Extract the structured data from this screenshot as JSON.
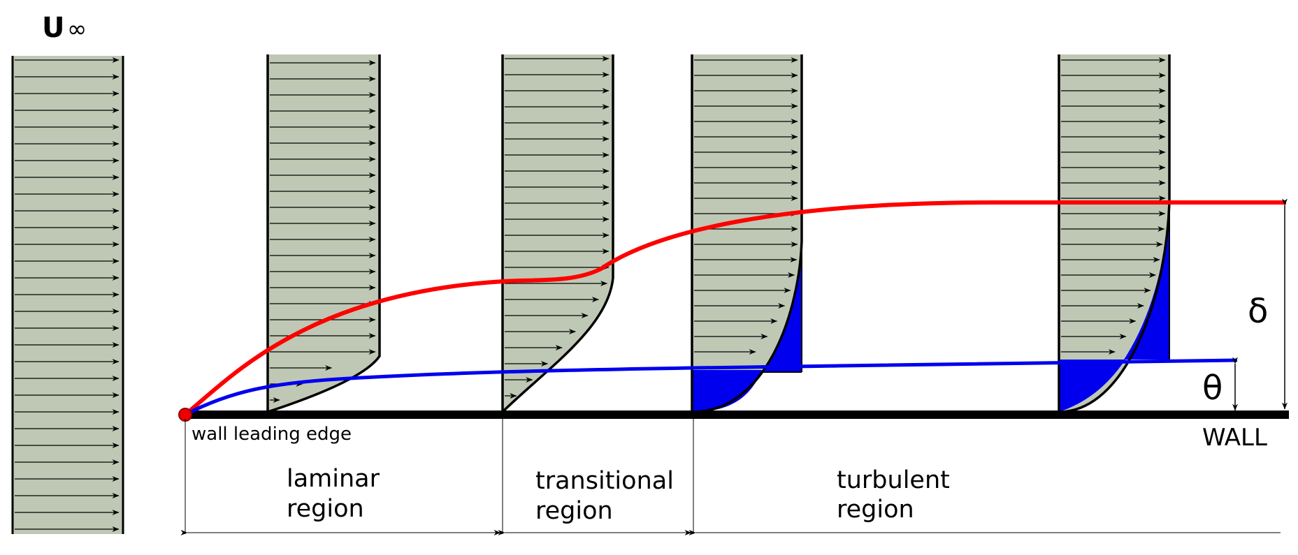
{
  "labels": {
    "freestream_u": "U",
    "freestream_inf": "∞",
    "delta": "δ",
    "theta": "θ",
    "wall": "WALL",
    "leading_edge": "wall leading edge"
  },
  "regions": [
    {
      "line1": "laminar",
      "line2": "region"
    },
    {
      "line1": "transitional",
      "line2": "region"
    },
    {
      "line1": "turbulent",
      "line2": "region"
    }
  ],
  "colors": {
    "profile_fill": "#bfc8b4",
    "boundary_layer_thickness": "#ff0000",
    "momentum_thickness": "#0000ee",
    "wall": "#000000"
  }
}
